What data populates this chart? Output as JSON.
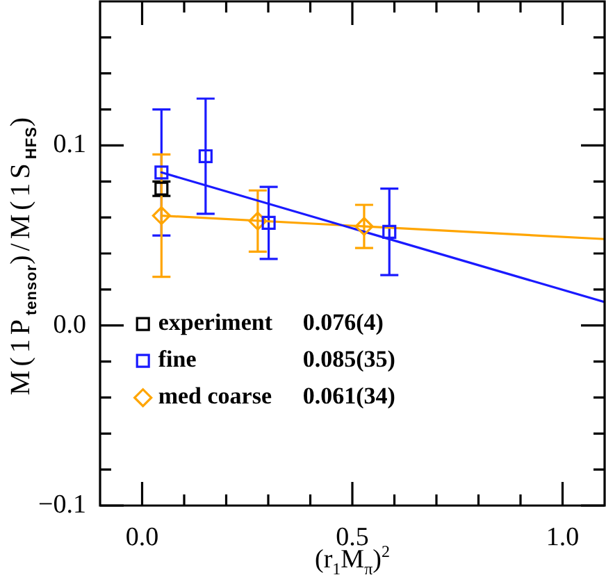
{
  "chart_data": {
    "type": "scatter",
    "xlabel": "(r$_{1}$M$_{π}$)$^{2}$",
    "ylabel": "M(1P$_{tensor}$)/M(1S$_{HFS}$)",
    "xlim": [
      -0.1,
      1.1
    ],
    "xticks": [
      {
        "value": 0,
        "label": "0.0"
      },
      {
        "value": 0.1,
        "label": null
      },
      {
        "value": 0.2,
        "label": null
      },
      {
        "value": 0.3,
        "label": null
      },
      {
        "value": 0.4,
        "label": null
      },
      0.5,
      {
        "value": 0.6,
        "label": null
      },
      {
        "value": 0.7,
        "label": null
      },
      {
        "value": 0.8,
        "label": null
      },
      {
        "value": 0.9,
        "label": null
      },
      {
        "value": 1,
        "label": "1.0"
      }
    ],
    "ylim": [
      -0.1,
      0.18
    ],
    "yticks": [
      {
        "value": -0.1,
        "label": "−0.1"
      },
      {
        "value": -0.08,
        "label": null
      },
      {
        "value": -0.06,
        "label": null
      },
      {
        "value": -0.04,
        "label": null
      },
      {
        "value": -0.02,
        "label": null
      },
      {
        "value": 0,
        "label": "0.0"
      },
      {
        "value": 0.02,
        "label": null
      },
      {
        "value": 0.04,
        "label": null
      },
      {
        "value": 0.06,
        "label": null
      },
      {
        "value": 0.08,
        "label": null
      },
      0.1,
      {
        "value": 0.12,
        "label": null
      },
      {
        "value": 0.14,
        "label": null
      },
      {
        "value": 0.16,
        "label": null
      }
    ],
    "legend": "bottom left",
    "annotations": [
      "0.076(4)",
      "0.085(35)",
      "0.061(34)"
    ],
    "series": [
      {
        "name": "experiment",
        "type": "scatter",
        "color": "#000000",
        "marker": "square",
        "x": [
          0.046
        ],
        "values": [
          0.076
        ],
        "errors": [
          0.004
        ]
      },
      {
        "name": "fine",
        "type": "scatter",
        "color": "#1a1aff",
        "marker": "square",
        "x": [
          0.046,
          0.151,
          0.301,
          0.588
        ],
        "values": [
          0.085,
          0.094,
          0.057,
          0.052
        ],
        "errors": [
          0.035,
          0.032,
          0.02,
          0.024
        ]
      },
      {
        "name": "med coarse",
        "type": "scatter",
        "color": "#ffa500",
        "marker": "diamond",
        "x": [
          0.046,
          0.275,
          0.528
        ],
        "values": [
          0.061,
          0.058,
          0.055
        ],
        "errors": [
          0.034,
          0.017,
          0.012
        ]
      },
      {
        "type": "line",
        "color": "#1a1aff",
        "marker": "none",
        "x": [
          0.046,
          1.1
        ],
        "values": [
          0.085,
          0.013
        ]
      },
      {
        "type": "line",
        "color": "#ffa500",
        "marker": "none",
        "x": [
          0.046,
          1.1
        ],
        "values": [
          0.061,
          0.048
        ]
      }
    ]
  }
}
